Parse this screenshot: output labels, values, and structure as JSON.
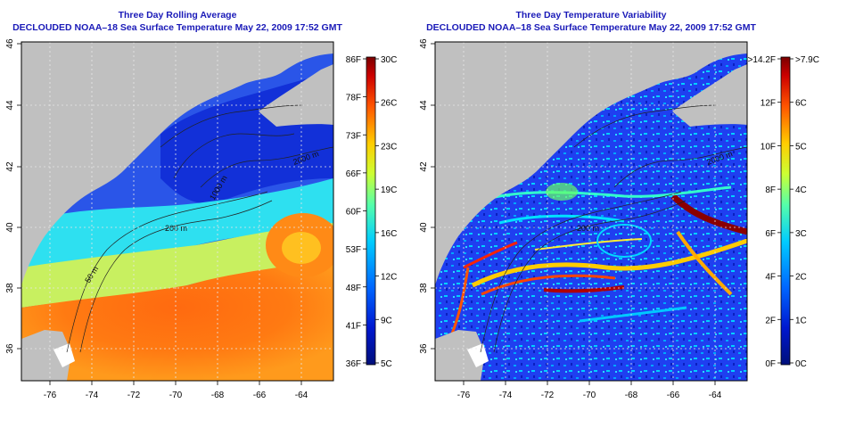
{
  "colors": {
    "title": "#1a1ab8",
    "land": "#c0c0c0",
    "frame": "#000000",
    "grid": "#e6e6e6"
  },
  "lon_ticks": [
    "-76",
    "-74",
    "-72",
    "-70",
    "-68",
    "-66",
    "-64"
  ],
  "lat_ticks": [
    "36",
    "38",
    "40",
    "42",
    "44",
    "46"
  ],
  "contour_labels": {
    "c50": "50 m",
    "c200": "200 m",
    "c1000": "1000 m",
    "c2000": "2000 m",
    "c200b": "200 m",
    "c2000b": "2000 m"
  },
  "left_panel": {
    "title": "Three Day Rolling Average",
    "subtitle": "DECLOUDED NOAA–18 Sea Surface Temperature May 22, 2009 17:52 GMT",
    "colorbar": {
      "f_labels": [
        "86F",
        "78F",
        "73F",
        "66F",
        "60F",
        "53F",
        "48F",
        "41F",
        "36F"
      ],
      "c_labels": [
        "30C",
        "26C",
        "23C",
        "19C",
        "16C",
        "12C",
        "9C",
        "5C"
      ]
    }
  },
  "right_panel": {
    "title": "Three Day Temperature Variability",
    "subtitle": "DECLOUDED NOAA–18 Sea Surface Temperature May 22, 2009 17:52 GMT",
    "colorbar": {
      "f_labels": [
        ">14.2F",
        "12F",
        "10F",
        "8F",
        "6F",
        "4F",
        "2F",
        "0F"
      ],
      "c_labels": [
        ">7.9C",
        "6C",
        "5C",
        "4C",
        "3C",
        "2C",
        "1C",
        "0C"
      ]
    }
  }
}
